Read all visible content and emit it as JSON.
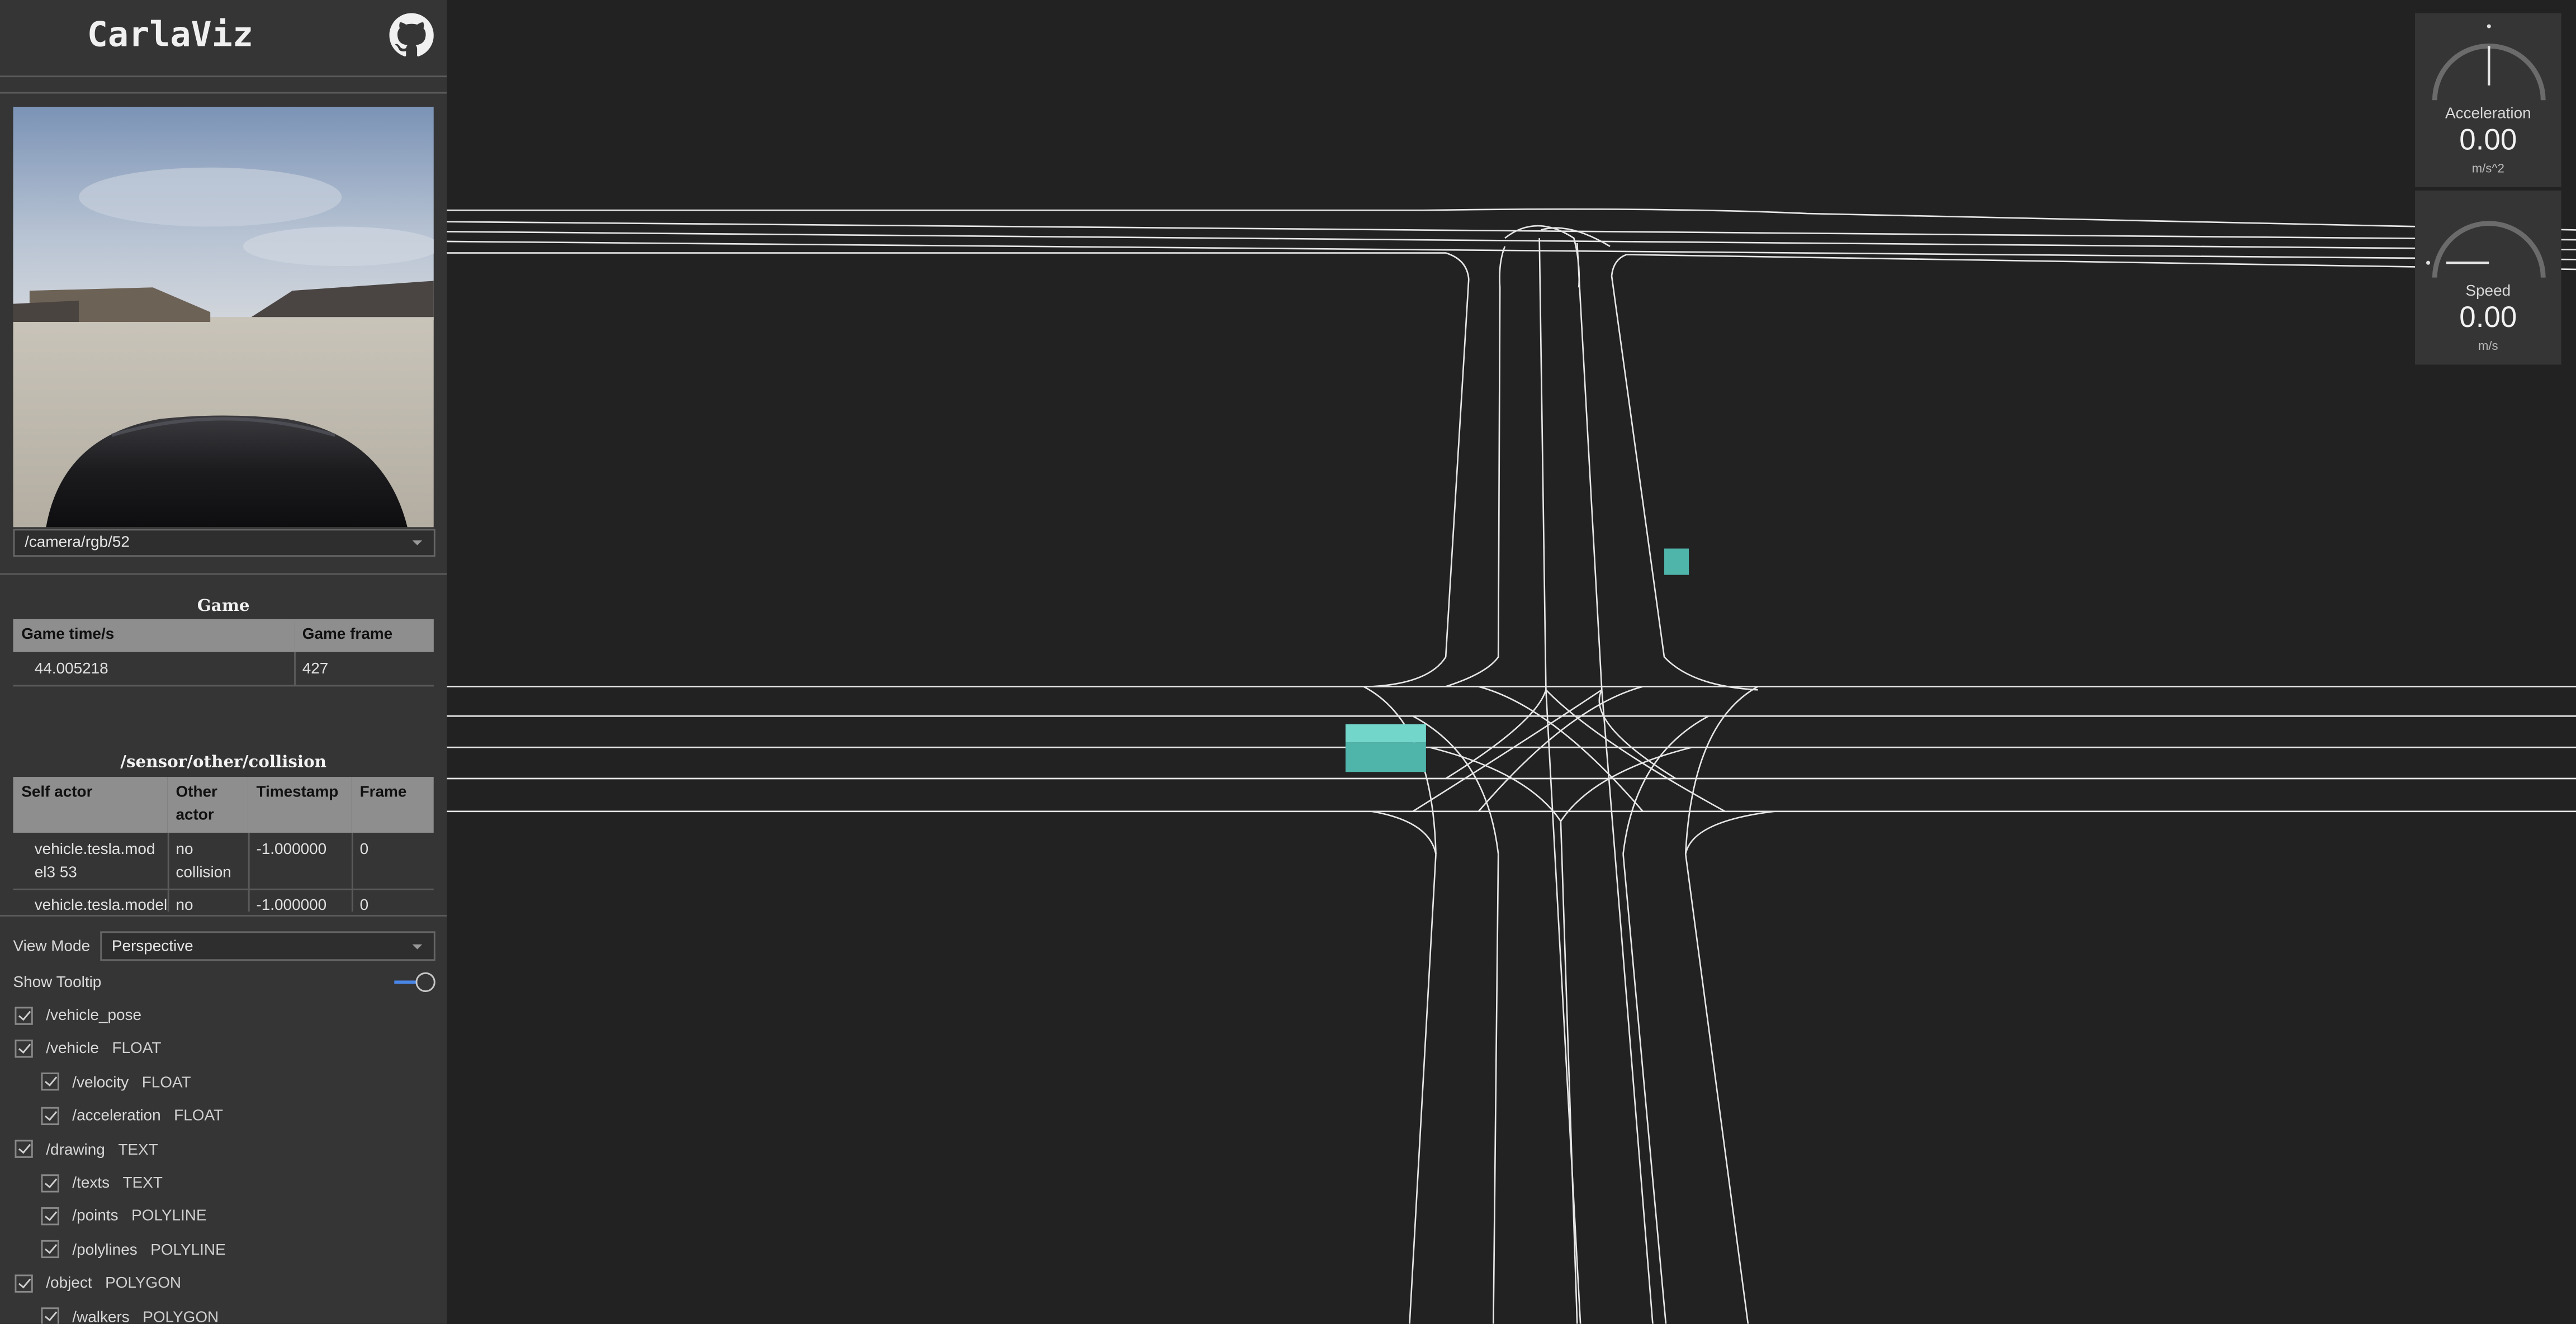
{
  "app": {
    "title": "CarlaViz"
  },
  "camera": {
    "selected": "/camera/rgb/52"
  },
  "game_table": {
    "title": "Game",
    "headers": [
      "Game time/s",
      "Game frame"
    ],
    "rows": [
      [
        "44.005218",
        "427"
      ]
    ]
  },
  "collision_table": {
    "title": "/sensor/other/collision",
    "headers": [
      "Self actor",
      "Other actor",
      "Timestamp",
      "Frame"
    ],
    "rows": [
      [
        "vehicle.tesla.model3 53",
        "no collision",
        "-1.000000",
        "0"
      ],
      [
        "vehicle.tesla.model3",
        "no",
        "-1.000000",
        "0"
      ]
    ]
  },
  "controls": {
    "view_mode_label": "View Mode",
    "view_mode_value": "Perspective",
    "show_tooltip_label": "Show Tooltip",
    "show_tooltip_on": true
  },
  "streams": [
    {
      "name": "/vehicle_pose",
      "type": "",
      "level": 0,
      "checked": true
    },
    {
      "name": "/vehicle",
      "type": "FLOAT",
      "level": 0,
      "checked": true
    },
    {
      "name": "/velocity",
      "type": "FLOAT",
      "level": 1,
      "checked": true
    },
    {
      "name": "/acceleration",
      "type": "FLOAT",
      "level": 1,
      "checked": true
    },
    {
      "name": "/drawing",
      "type": "TEXT",
      "level": 0,
      "checked": true
    },
    {
      "name": "/texts",
      "type": "TEXT",
      "level": 1,
      "checked": true
    },
    {
      "name": "/points",
      "type": "POLYLINE",
      "level": 1,
      "checked": true
    },
    {
      "name": "/polylines",
      "type": "POLYLINE",
      "level": 1,
      "checked": true
    },
    {
      "name": "/object",
      "type": "POLYGON",
      "level": 0,
      "checked": true
    },
    {
      "name": "/walkers",
      "type": "POLYGON",
      "level": 1,
      "checked": true
    }
  ],
  "gauges": {
    "acceleration": {
      "label": "Acceleration",
      "value": "0.00",
      "unit": "m/s^2"
    },
    "speed": {
      "label": "Speed",
      "value": "0.00",
      "unit": "m/s"
    }
  },
  "colors": {
    "background": "#222222",
    "sidebar": "#353535",
    "road_lines": "#e6e6e6",
    "vehicle": "#5ec8be",
    "accent": "#4a86e8"
  }
}
